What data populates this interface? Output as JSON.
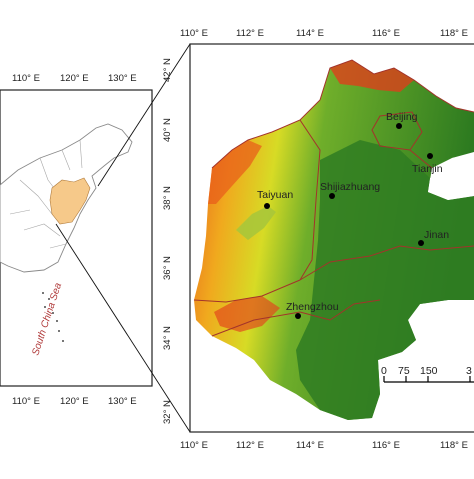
{
  "inset_map": {
    "top_ticks": [
      "110° E",
      "120° E",
      "130° E"
    ],
    "bottom_ticks": [
      "110° E",
      "120° E",
      "130° E"
    ],
    "sea_label": "South China Sea",
    "highlight_color": "#f6c98a"
  },
  "main_map": {
    "top_ticks": [
      "110° E",
      "112° E",
      "114° E",
      "116° E",
      "118° E"
    ],
    "bottom_ticks": [
      "110° E",
      "112° E",
      "114° E",
      "116° E",
      "118° E"
    ],
    "left_ticks": [
      "42° N",
      "40° N",
      "38° N",
      "36° N",
      "34° N",
      "32° N"
    ],
    "cities": [
      {
        "name": "Beijing",
        "lon": 116.4,
        "lat": 40.0
      },
      {
        "name": "Tianjin",
        "lon": 117.2,
        "lat": 39.1
      },
      {
        "name": "Taiyuan",
        "lon": 112.5,
        "lat": 37.9
      },
      {
        "name": "Shijiazhuang",
        "lon": 114.5,
        "lat": 38.0
      },
      {
        "name": "Jinan",
        "lon": 117.0,
        "lat": 36.7
      },
      {
        "name": "Zhengzhou",
        "lon": 113.6,
        "lat": 34.7
      }
    ],
    "scale_bar": {
      "labels": [
        "0",
        "75",
        "150",
        "3"
      ]
    },
    "colors": {
      "low": "#2f7d22",
      "mid": "#c8d61f",
      "high": "#d6231b",
      "boundary": "#a3332b"
    }
  }
}
